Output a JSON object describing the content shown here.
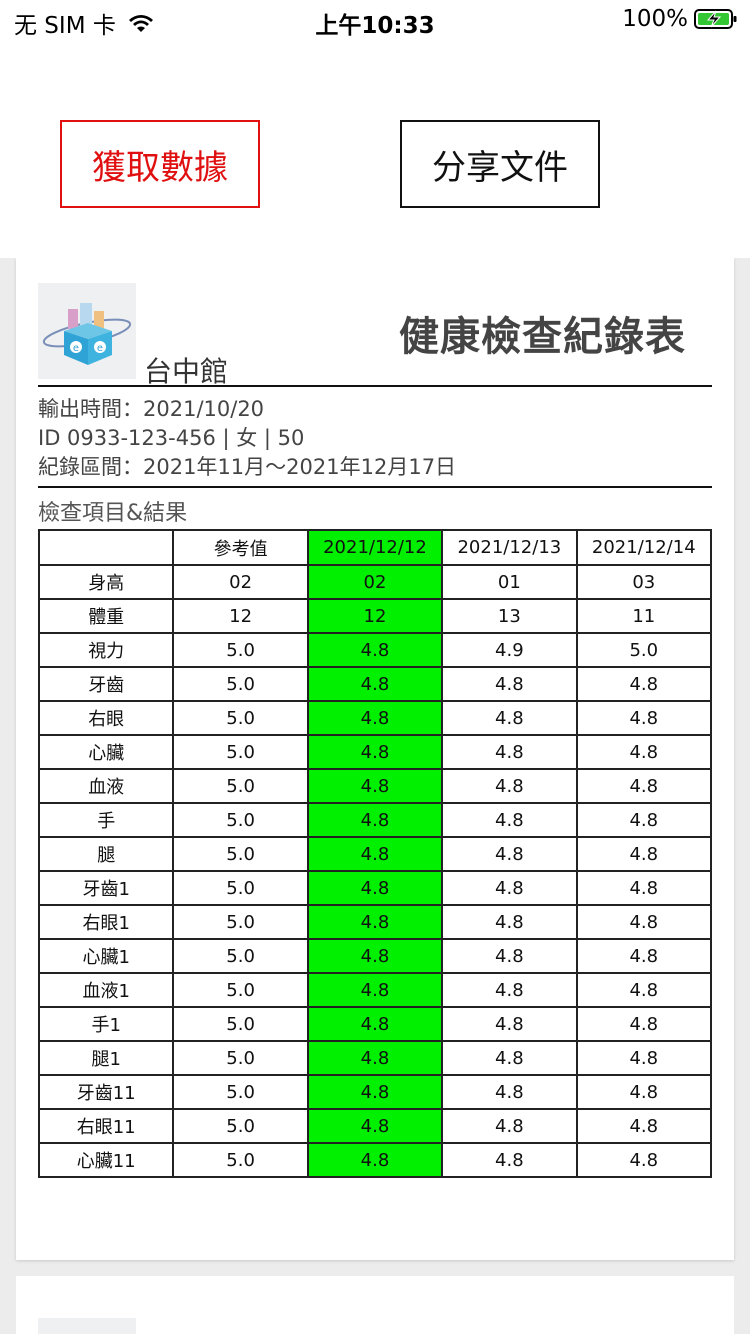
{
  "status_bar": {
    "carrier": "无 SIM 卡",
    "time": "上午10:33",
    "battery": "100%"
  },
  "buttons": {
    "fetch_label": "獲取數據",
    "share_label": "分享文件"
  },
  "document": {
    "branch": "台中館",
    "title": "健康檢查紀錄表",
    "output_time": "輸出時間：2021/10/20",
    "id_line": "ID 0933-123-456 | 女 | 50",
    "record_range": "紀錄區間：2021年11月～2021年12月17日",
    "section_label": "檢查項目&結果",
    "highlight_color": "#00f000",
    "table": {
      "headers": [
        "",
        "參考值",
        "2021/12/12",
        "2021/12/13",
        "2021/12/14"
      ],
      "rows": [
        [
          "身高",
          "02",
          "02",
          "01",
          "03"
        ],
        [
          "體重",
          "12",
          "12",
          "13",
          "11"
        ],
        [
          "視力",
          "5.0",
          "4.8",
          "4.9",
          "5.0"
        ],
        [
          "牙齒",
          "5.0",
          "4.8",
          "4.8",
          "4.8"
        ],
        [
          "右眼",
          "5.0",
          "4.8",
          "4.8",
          "4.8"
        ],
        [
          "心臟",
          "5.0",
          "4.8",
          "4.8",
          "4.8"
        ],
        [
          "血液",
          "5.0",
          "4.8",
          "4.8",
          "4.8"
        ],
        [
          "手",
          "5.0",
          "4.8",
          "4.8",
          "4.8"
        ],
        [
          "腿",
          "5.0",
          "4.8",
          "4.8",
          "4.8"
        ],
        [
          "牙齒1",
          "5.0",
          "4.8",
          "4.8",
          "4.8"
        ],
        [
          "右眼1",
          "5.0",
          "4.8",
          "4.8",
          "4.8"
        ],
        [
          "心臟1",
          "5.0",
          "4.8",
          "4.8",
          "4.8"
        ],
        [
          "血液1",
          "5.0",
          "4.8",
          "4.8",
          "4.8"
        ],
        [
          "手1",
          "5.0",
          "4.8",
          "4.8",
          "4.8"
        ],
        [
          "腿1",
          "5.0",
          "4.8",
          "4.8",
          "4.8"
        ],
        [
          "牙齒11",
          "5.0",
          "4.8",
          "4.8",
          "4.8"
        ],
        [
          "右眼11",
          "5.0",
          "4.8",
          "4.8",
          "4.8"
        ],
        [
          "心臟11",
          "5.0",
          "4.8",
          "4.8",
          "4.8"
        ]
      ]
    }
  }
}
